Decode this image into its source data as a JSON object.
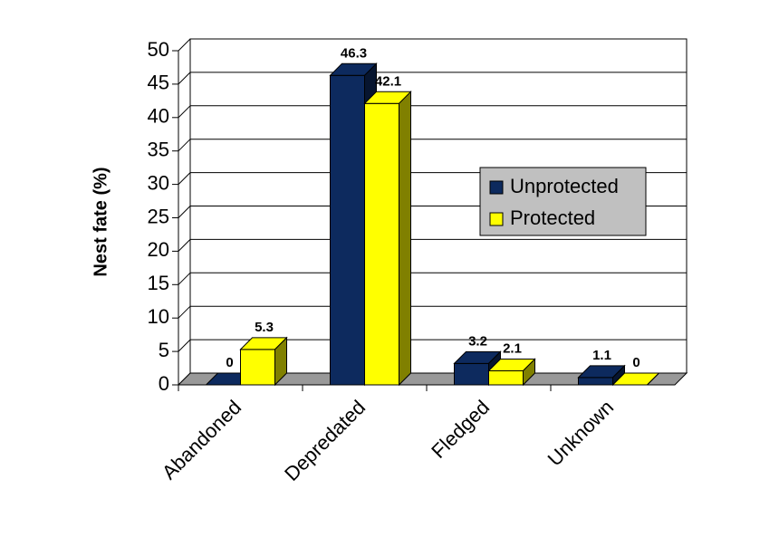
{
  "chart_data": {
    "type": "bar3d",
    "y_label": "Nest fate (%)",
    "categories": [
      "Abandoned",
      "Depredated",
      "Fledged",
      "Unknown"
    ],
    "series": [
      {
        "name": "Unprotected",
        "color": "#0d2a5e",
        "values": [
          0,
          46.3,
          3.2,
          1.1
        ]
      },
      {
        "name": "Protected",
        "color": "#ffff00",
        "values": [
          5.3,
          42.1,
          2.1,
          0
        ]
      }
    ],
    "ylim": [
      0,
      50
    ],
    "yticks": [
      0,
      5,
      10,
      15,
      20,
      25,
      30,
      35,
      40,
      45,
      50
    ],
    "grid": true,
    "legend": "right"
  }
}
